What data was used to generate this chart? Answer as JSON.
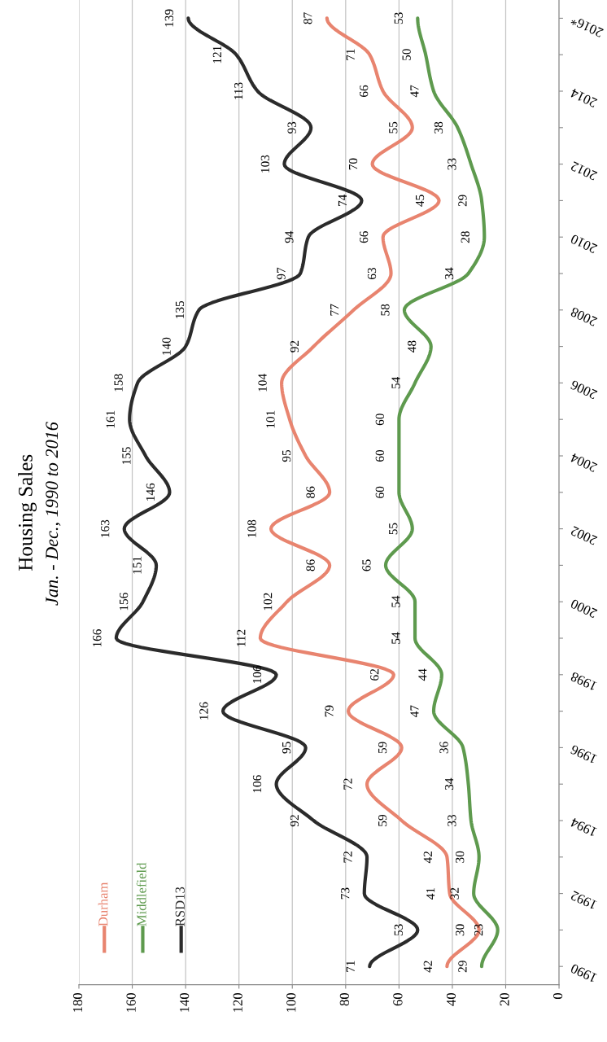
{
  "chart_data": {
    "type": "line",
    "orientation": "horizontal",
    "title": "Housing Sales",
    "subtitle": "Jan. - Dec., 1990 to 2016",
    "x": [
      1990,
      1991,
      1992,
      1993,
      1994,
      1995,
      1996,
      1997,
      1998,
      1999,
      2000,
      2001,
      2002,
      2003,
      2004,
      2005,
      2006,
      2007,
      2008,
      2009,
      2010,
      2011,
      2012,
      2013,
      2014,
      2015,
      2016
    ],
    "ylim": [
      1989.5,
      2016.5
    ],
    "yticks": [
      1990,
      {
        "value": 1991,
        "label": null
      },
      1992,
      {
        "value": 1993,
        "label": null
      },
      1994,
      {
        "value": 1995,
        "label": null
      },
      1996,
      {
        "value": 1997,
        "label": null
      },
      1998,
      {
        "value": 1999,
        "label": null
      },
      2000,
      {
        "value": 2001,
        "label": null
      },
      2002,
      {
        "value": 2003,
        "label": null
      },
      2004,
      {
        "value": 2005,
        "label": null
      },
      2006,
      {
        "value": 2007,
        "label": null
      },
      2008,
      {
        "value": 2009,
        "label": null
      },
      2010,
      {
        "value": 2011,
        "label": null
      },
      2012,
      {
        "value": 2013,
        "label": null
      },
      2014,
      {
        "value": 2015,
        "label": null
      },
      {
        "value": 2016,
        "label": "2016*"
      }
    ],
    "xlim": [
      180,
      0
    ],
    "xticks": [
      0,
      20,
      40,
      60,
      80,
      100,
      120,
      140,
      160,
      180
    ],
    "series": [
      {
        "name": "Durham",
        "color": "#e8846f",
        "values": [
          42,
          30,
          41,
          42,
          59,
          72,
          59,
          79,
          62,
          112,
          102,
          86,
          108,
          86,
          95,
          101,
          104,
          92,
          77,
          63,
          66,
          45,
          70,
          55,
          66,
          71,
          87
        ]
      },
      {
        "name": "Middlefield",
        "color": "#5e9a4e",
        "values": [
          29,
          23,
          32,
          30,
          33,
          34,
          36,
          47,
          44,
          54,
          54,
          65,
          55,
          60,
          60,
          60,
          54,
          48,
          58,
          34,
          28,
          29,
          33,
          38,
          47,
          50,
          53
        ]
      },
      {
        "name": "RSD13",
        "color": "#2b2b2b",
        "values": [
          71,
          53,
          73,
          72,
          92,
          106,
          95,
          126,
          106,
          166,
          156,
          151,
          163,
          146,
          155,
          161,
          158,
          140,
          135,
          97,
          94,
          74,
          103,
          93,
          113,
          121,
          139
        ]
      }
    ],
    "data_labels": true,
    "grid": "x",
    "legend": "bottom left"
  }
}
